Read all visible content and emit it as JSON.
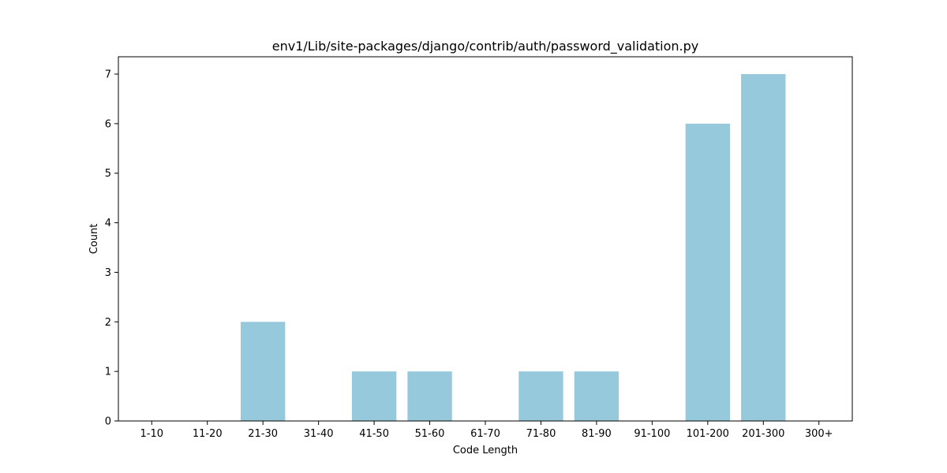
{
  "chart_data": {
    "type": "bar",
    "title": "env1/Lib/site-packages/django/contrib/auth/password_validation.py",
    "xlabel": "Code Length",
    "ylabel": "Count",
    "categories": [
      "1-10",
      "11-20",
      "21-30",
      "31-40",
      "41-50",
      "51-60",
      "61-70",
      "71-80",
      "81-90",
      "91-100",
      "101-200",
      "201-300",
      "300+"
    ],
    "values": [
      0,
      0,
      2,
      0,
      1,
      1,
      0,
      1,
      1,
      0,
      6,
      7,
      0
    ],
    "ylim": [
      0,
      7.35
    ],
    "yticks": [
      "0",
      "1",
      "2",
      "3",
      "4",
      "5",
      "6",
      "7"
    ],
    "bar_color": "#96c9dc",
    "grid": false,
    "legend": "none"
  }
}
